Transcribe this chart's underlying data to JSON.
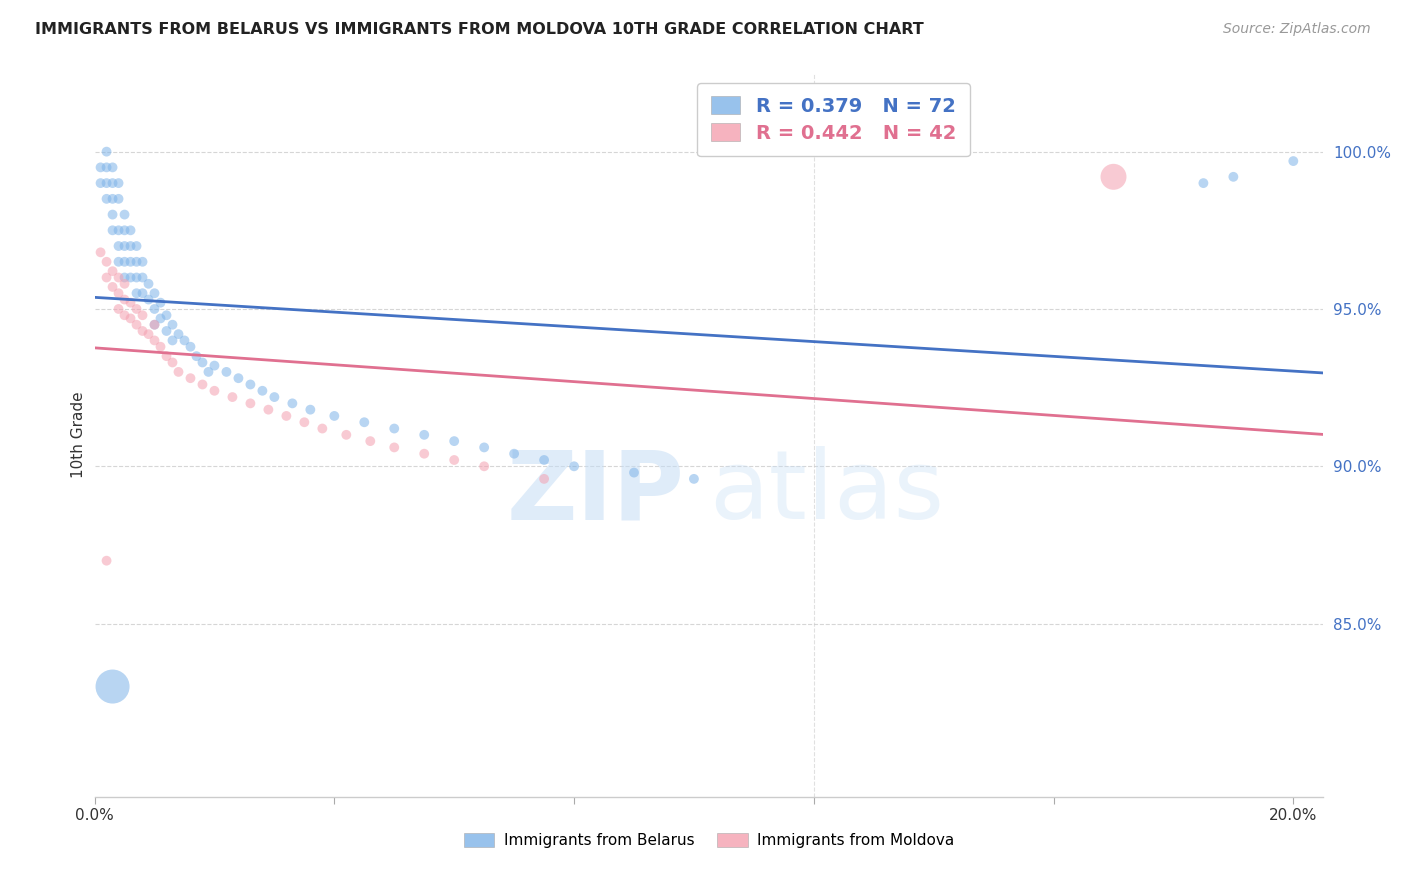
{
  "title": "IMMIGRANTS FROM BELARUS VS IMMIGRANTS FROM MOLDOVA 10TH GRADE CORRELATION CHART",
  "source": "Source: ZipAtlas.com",
  "ylabel": "10th Grade",
  "y_ticks": [
    0.85,
    0.9,
    0.95,
    1.0
  ],
  "y_tick_labels": [
    "85.0%",
    "90.0%",
    "95.0%",
    "100.0%"
  ],
  "x_lim": [
    0.0,
    0.205
  ],
  "y_lim": [
    0.795,
    1.025
  ],
  "belarus_color": "#7EB3E8",
  "moldova_color": "#F4A0B0",
  "belarus_line_color": "#4472C4",
  "moldova_line_color": "#E07090",
  "belarus_R": 0.379,
  "belarus_N": 72,
  "moldova_R": 0.442,
  "moldova_N": 42,
  "legend_belarus": "Immigrants from Belarus",
  "legend_moldova": "Immigrants from Moldova",
  "belarus_x": [
    0.001,
    0.001,
    0.002,
    0.002,
    0.002,
    0.002,
    0.003,
    0.003,
    0.003,
    0.003,
    0.003,
    0.004,
    0.004,
    0.004,
    0.004,
    0.004,
    0.005,
    0.005,
    0.005,
    0.005,
    0.005,
    0.006,
    0.006,
    0.006,
    0.006,
    0.007,
    0.007,
    0.007,
    0.007,
    0.008,
    0.008,
    0.008,
    0.009,
    0.009,
    0.01,
    0.01,
    0.01,
    0.011,
    0.011,
    0.012,
    0.012,
    0.013,
    0.013,
    0.014,
    0.015,
    0.016,
    0.017,
    0.018,
    0.019,
    0.02,
    0.022,
    0.024,
    0.026,
    0.028,
    0.03,
    0.033,
    0.036,
    0.04,
    0.045,
    0.05,
    0.055,
    0.06,
    0.065,
    0.07,
    0.075,
    0.08,
    0.09,
    0.1,
    0.003,
    0.185,
    0.19,
    0.2
  ],
  "belarus_y": [
    0.99,
    0.995,
    0.985,
    0.99,
    0.995,
    1.0,
    0.985,
    0.99,
    0.995,
    0.98,
    0.975,
    0.985,
    0.99,
    0.975,
    0.97,
    0.965,
    0.98,
    0.975,
    0.97,
    0.965,
    0.96,
    0.975,
    0.97,
    0.965,
    0.96,
    0.97,
    0.965,
    0.96,
    0.955,
    0.965,
    0.96,
    0.955,
    0.958,
    0.953,
    0.955,
    0.95,
    0.945,
    0.952,
    0.947,
    0.948,
    0.943,
    0.945,
    0.94,
    0.942,
    0.94,
    0.938,
    0.935,
    0.933,
    0.93,
    0.932,
    0.93,
    0.928,
    0.926,
    0.924,
    0.922,
    0.92,
    0.918,
    0.916,
    0.914,
    0.912,
    0.91,
    0.908,
    0.906,
    0.904,
    0.902,
    0.9,
    0.898,
    0.896,
    0.83,
    0.99,
    0.992,
    0.997
  ],
  "belarus_sizes": [
    50,
    50,
    50,
    50,
    50,
    50,
    50,
    50,
    50,
    50,
    50,
    50,
    50,
    50,
    50,
    50,
    50,
    50,
    50,
    50,
    50,
    50,
    50,
    50,
    50,
    50,
    50,
    50,
    50,
    50,
    50,
    50,
    50,
    50,
    50,
    50,
    50,
    50,
    50,
    50,
    50,
    50,
    50,
    50,
    50,
    50,
    50,
    50,
    50,
    50,
    50,
    50,
    50,
    50,
    50,
    50,
    50,
    50,
    50,
    50,
    50,
    50,
    50,
    50,
    50,
    50,
    50,
    50,
    600,
    50,
    50,
    50
  ],
  "moldova_x": [
    0.001,
    0.002,
    0.002,
    0.003,
    0.003,
    0.004,
    0.004,
    0.004,
    0.005,
    0.005,
    0.005,
    0.006,
    0.006,
    0.007,
    0.007,
    0.008,
    0.008,
    0.009,
    0.01,
    0.01,
    0.011,
    0.012,
    0.013,
    0.014,
    0.016,
    0.018,
    0.02,
    0.023,
    0.026,
    0.029,
    0.032,
    0.035,
    0.038,
    0.042,
    0.046,
    0.05,
    0.055,
    0.06,
    0.065,
    0.075,
    0.17,
    0.002
  ],
  "moldova_y": [
    0.968,
    0.965,
    0.96,
    0.962,
    0.957,
    0.96,
    0.955,
    0.95,
    0.958,
    0.953,
    0.948,
    0.952,
    0.947,
    0.95,
    0.945,
    0.948,
    0.943,
    0.942,
    0.94,
    0.945,
    0.938,
    0.935,
    0.933,
    0.93,
    0.928,
    0.926,
    0.924,
    0.922,
    0.92,
    0.918,
    0.916,
    0.914,
    0.912,
    0.91,
    0.908,
    0.906,
    0.904,
    0.902,
    0.9,
    0.896,
    0.992,
    0.87
  ],
  "moldova_sizes": [
    50,
    50,
    50,
    50,
    50,
    50,
    50,
    50,
    50,
    50,
    50,
    50,
    50,
    50,
    50,
    50,
    50,
    50,
    50,
    50,
    50,
    50,
    50,
    50,
    50,
    50,
    50,
    50,
    50,
    50,
    50,
    50,
    50,
    50,
    50,
    50,
    50,
    50,
    50,
    50,
    350,
    50
  ]
}
